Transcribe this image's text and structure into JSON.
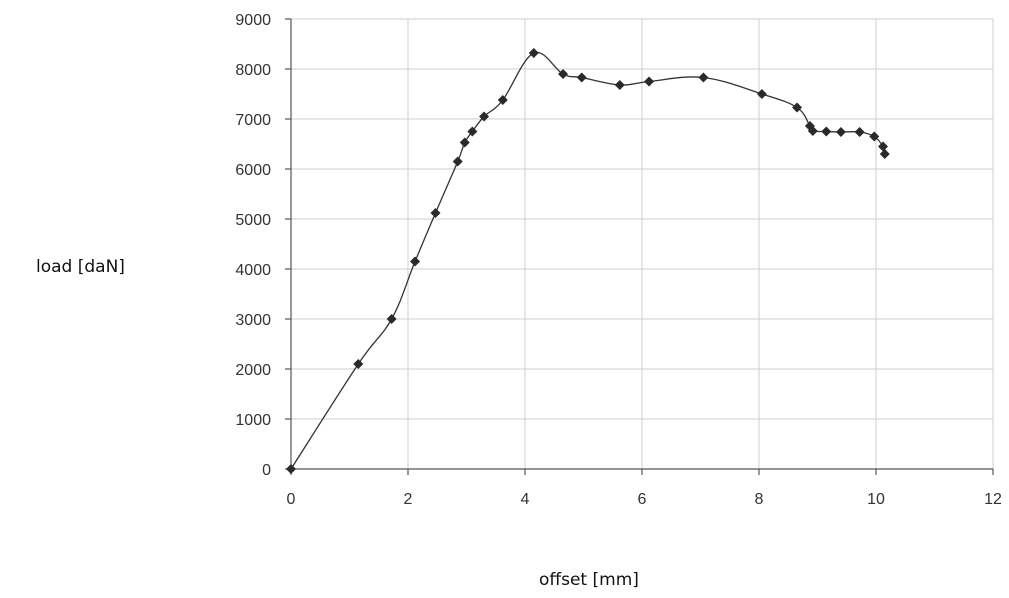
{
  "chart_data": {
    "type": "scatter",
    "xlabel": "offset [mm]",
    "ylabel": "load [daN]",
    "xlim": [
      0,
      12
    ],
    "ylim": [
      0,
      9000
    ],
    "x_ticks": [
      0,
      2,
      4,
      6,
      8,
      10,
      12
    ],
    "y_ticks": [
      0,
      1000,
      2000,
      3000,
      4000,
      5000,
      6000,
      7000,
      8000,
      9000
    ],
    "grid": true,
    "line_smoothed": true,
    "marker": "diamond",
    "series": [
      {
        "x": [
          0,
          1.15,
          1.72,
          2.12,
          2.47,
          2.85,
          2.97,
          3.1,
          3.3,
          3.62,
          4.15,
          4.65,
          4.97,
          5.62,
          6.12,
          7.05,
          8.05,
          8.65,
          8.87,
          8.92,
          9.15,
          9.4,
          9.72,
          9.97,
          10.12,
          10.15
        ],
        "y": [
          0,
          2100,
          3000,
          4150,
          5120,
          6150,
          6530,
          6750,
          7050,
          7380,
          8320,
          7900,
          7830,
          7680,
          7750,
          7830,
          7500,
          7230,
          6860,
          6760,
          6750,
          6740,
          6740,
          6650,
          6450,
          6300
        ]
      }
    ]
  }
}
